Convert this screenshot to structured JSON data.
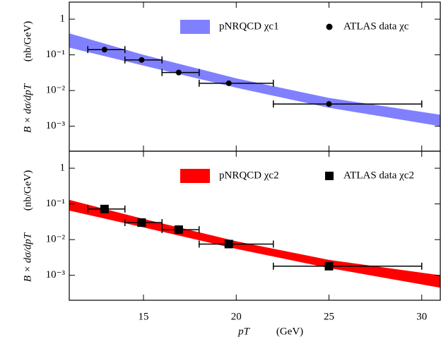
{
  "chart_data": [
    {
      "type": "scatter",
      "y_label": "B × dσ/dpT",
      "y_unit": "(nb/GeV)",
      "xlim": [
        11,
        31
      ],
      "ylim": [
        0.0002,
        3
      ],
      "log_y": true,
      "yticks": [
        {
          "value": 1,
          "label": "1"
        },
        {
          "value": 0.1,
          "label": "10⁻¹"
        },
        {
          "value": 0.01,
          "label": "10⁻²"
        },
        {
          "value": 0.001,
          "label": "10⁻³"
        }
      ],
      "xticks": [
        15,
        20,
        25,
        30
      ],
      "series": [
        {
          "name": "pNRQCD χc1",
          "color": "#8080ff",
          "x": [
            11,
            15,
            20,
            25,
            31
          ],
          "upper": [
            0.4,
            0.1,
            0.022,
            0.0062,
            0.0021
          ],
          "lower": [
            0.16,
            0.05,
            0.012,
            0.0033,
            0.001
          ]
        },
        {
          "name": "ATLAS data χc",
          "color": "#000000",
          "marker": "circle",
          "x": [
            12.9,
            14.9,
            16.9,
            19.6,
            25
          ],
          "values": [
            0.14,
            0.072,
            0.032,
            0.016,
            0.0042
          ],
          "xlow": [
            12,
            14,
            16,
            18,
            22
          ],
          "xhigh": [
            14,
            16,
            18,
            22,
            30
          ]
        }
      ]
    },
    {
      "type": "scatter",
      "y_label": "B × dσ/dpT",
      "y_unit": "(nb/GeV)",
      "x_label": "pT",
      "x_unit": "(GeV)",
      "xlim": [
        11,
        31
      ],
      "ylim": [
        0.0002,
        3
      ],
      "log_y": true,
      "yticks": [
        {
          "value": 1,
          "label": "1"
        },
        {
          "value": 0.1,
          "label": "10⁻¹"
        },
        {
          "value": 0.01,
          "label": "10⁻²"
        },
        {
          "value": 0.001,
          "label": "10⁻³"
        }
      ],
      "xticks": [
        15,
        20,
        25,
        30
      ],
      "series": [
        {
          "name": "pNRQCD χc2",
          "color": "#ff0000",
          "x": [
            11,
            15,
            20,
            25,
            31
          ],
          "upper": [
            0.13,
            0.038,
            0.009,
            0.0027,
            0.001
          ],
          "lower": [
            0.065,
            0.022,
            0.0055,
            0.0016,
            0.00045
          ]
        },
        {
          "name": "ATLAS data χc2",
          "color": "#000000",
          "marker": "square",
          "x": [
            12.9,
            14.9,
            16.9,
            19.6,
            25
          ],
          "values": [
            0.072,
            0.03,
            0.019,
            0.0075,
            0.0018
          ],
          "xlow": [
            12,
            14,
            16,
            18,
            22
          ],
          "xhigh": [
            14,
            16,
            18,
            22,
            30
          ]
        }
      ]
    }
  ]
}
